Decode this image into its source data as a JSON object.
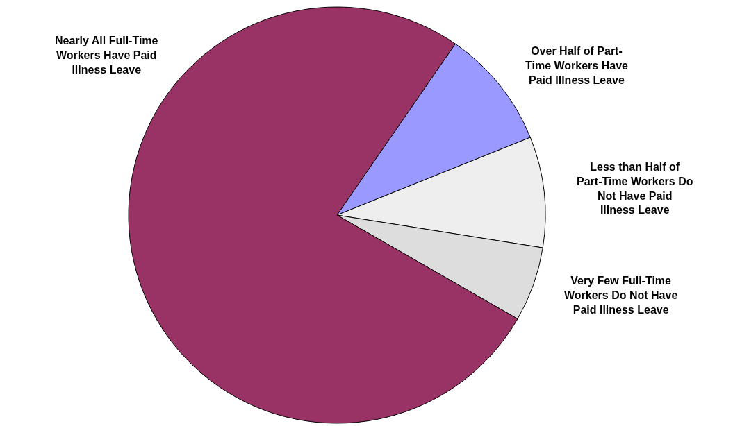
{
  "chart_data": {
    "type": "pie",
    "categories": [
      "Over Half of Part-Time Workers Have Paid Illness Leave",
      "Less than Half of Part-Time Workers Do Not Have Paid Illness Leave",
      "Very Few Full-Time Workers Do Not Have Paid Illness Leave",
      "Nearly All Full-Time Workers Have Paid Illness Leave"
    ],
    "values": [
      9.3,
      8.6,
      5.8,
      76.3
    ],
    "colors": [
      "#9999ff",
      "#eeeeee",
      "#dddddd",
      "#993366"
    ]
  }
}
